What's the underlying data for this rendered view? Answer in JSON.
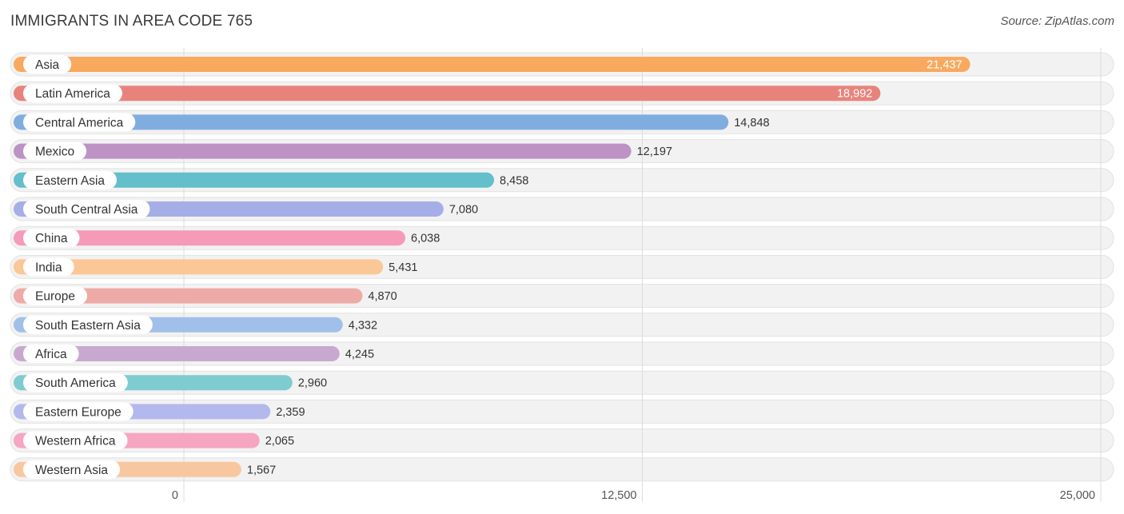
{
  "chart_data": {
    "type": "bar",
    "orientation": "horizontal",
    "title": "IMMIGRANTS IN AREA CODE 765",
    "source": "Source: ZipAtlas.com",
    "xlim": [
      0,
      25000
    ],
    "ticks": [
      {
        "value": 0,
        "label": "0"
      },
      {
        "value": 12500,
        "label": "12,500"
      },
      {
        "value": 25000,
        "label": "25,000"
      }
    ],
    "grid": true,
    "categories": [
      "Asia",
      "Latin America",
      "Central America",
      "Mexico",
      "Eastern Asia",
      "South Central Asia",
      "China",
      "India",
      "Europe",
      "South Eastern Asia",
      "Africa",
      "South America",
      "Eastern Europe",
      "Western Africa",
      "Western Asia"
    ],
    "values": [
      21437,
      18992,
      14848,
      12197,
      8458,
      7080,
      6038,
      5431,
      4870,
      4332,
      4245,
      2960,
      2359,
      2065,
      1567
    ],
    "value_labels": [
      "21,437",
      "18,992",
      "14,848",
      "12,197",
      "8,458",
      "7,080",
      "6,038",
      "5,431",
      "4,870",
      "4,332",
      "4,245",
      "2,960",
      "2,359",
      "2,065",
      "1,567"
    ],
    "colors": [
      "#f8a95e",
      "#e8837c",
      "#7fade0",
      "#bd93c6",
      "#62bfcb",
      "#a6aee8",
      "#f59ab7",
      "#fbc797",
      "#eeaaa7",
      "#a0c0ea",
      "#c9a8cf",
      "#7ecbd0",
      "#b3b9ec",
      "#f6a6c1",
      "#f9c79f"
    ]
  }
}
